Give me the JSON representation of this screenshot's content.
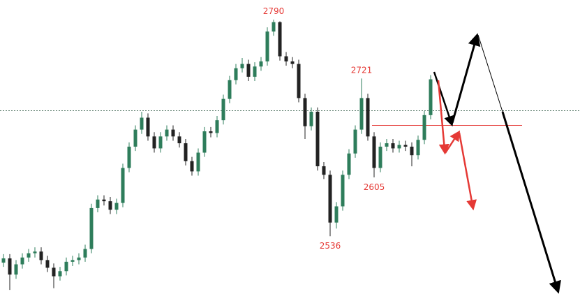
{
  "chart_data": {
    "type": "candlestick",
    "open": [
      2505,
      2510,
      2491,
      2503,
      2511,
      2516,
      2518,
      2508,
      2499,
      2489,
      2495,
      2506,
      2508,
      2511,
      2521,
      2569,
      2579,
      2577,
      2567,
      2575,
      2616,
      2641,
      2661,
      2675,
      2653,
      2639,
      2653,
      2661,
      2653,
      2645,
      2624,
      2612,
      2634,
      2659,
      2657,
      2672,
      2697,
      2719,
      2733,
      2738,
      2723,
      2735,
      2741,
      2776,
      2787,
      2747,
      2741,
      2738,
      2698,
      2665,
      2682,
      2618,
      2608,
      2552,
      2571,
      2608,
      2633,
      2661,
      2698,
      2653,
      2616,
      2641,
      2645,
      2639,
      2643,
      2641,
      2631,
      2649,
      2678
    ],
    "high": [
      2515,
      2515,
      2508,
      2516,
      2521,
      2523,
      2523,
      2513,
      2504,
      2500,
      2511,
      2513,
      2516,
      2526,
      2574,
      2584,
      2584,
      2582,
      2580,
      2621,
      2646,
      2666,
      2682,
      2680,
      2658,
      2658,
      2666,
      2666,
      2658,
      2650,
      2629,
      2639,
      2664,
      2664,
      2677,
      2702,
      2724,
      2738,
      2745,
      2743,
      2740,
      2746,
      2781,
      2790,
      2788,
      2752,
      2746,
      2743,
      2703,
      2687,
      2687,
      2623,
      2613,
      2576,
      2613,
      2638,
      2666,
      2721,
      2703,
      2658,
      2646,
      2650,
      2650,
      2648,
      2648,
      2646,
      2654,
      2683,
      2725
    ],
    "low": [
      2500,
      2473,
      2486,
      2498,
      2506,
      2511,
      2503,
      2494,
      2475,
      2484,
      2490,
      2501,
      2503,
      2506,
      2516,
      2564,
      2572,
      2562,
      2562,
      2570,
      2611,
      2636,
      2656,
      2648,
      2634,
      2634,
      2648,
      2648,
      2640,
      2619,
      2607,
      2607,
      2629,
      2652,
      2652,
      2667,
      2692,
      2714,
      2728,
      2718,
      2718,
      2730,
      2736,
      2771,
      2742,
      2736,
      2733,
      2693,
      2650,
      2660,
      2613,
      2603,
      2536,
      2545,
      2566,
      2603,
      2628,
      2656,
      2648,
      2605,
      2611,
      2636,
      2634,
      2634,
      2636,
      2618,
      2626,
      2644,
      2673
    ],
    "close": [
      2510,
      2491,
      2503,
      2511,
      2516,
      2518,
      2508,
      2499,
      2489,
      2495,
      2506,
      2508,
      2511,
      2521,
      2569,
      2579,
      2577,
      2567,
      2575,
      2616,
      2641,
      2661,
      2675,
      2653,
      2639,
      2653,
      2661,
      2653,
      2645,
      2624,
      2612,
      2634,
      2659,
      2657,
      2672,
      2697,
      2719,
      2733,
      2738,
      2723,
      2735,
      2741,
      2776,
      2787,
      2747,
      2741,
      2738,
      2698,
      2665,
      2682,
      2618,
      2608,
      2552,
      2571,
      2608,
      2633,
      2661,
      2698,
      2653,
      2616,
      2641,
      2645,
      2639,
      2643,
      2641,
      2631,
      2649,
      2678,
      2720
    ],
    "annotations": [
      2790,
      2721,
      2605,
      2536
    ],
    "ylim": [
      2460,
      2813
    ],
    "up_color": "#2e7d5b",
    "down_color": "#222222",
    "label_color": "#e53935"
  }
}
